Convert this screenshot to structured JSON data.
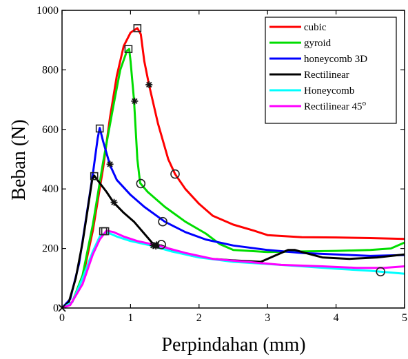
{
  "chart_data": {
    "type": "line",
    "title": "",
    "xlabel": "Perpindahan (mm)",
    "ylabel": "Beban (N)",
    "xlim": [
      0,
      5
    ],
    "ylim": [
      0,
      1000
    ],
    "xticks": [
      "0",
      "1",
      "2",
      "3",
      "4",
      "5"
    ],
    "yticks": [
      "0",
      "200",
      "400",
      "600",
      "800",
      "1000"
    ],
    "grid": false,
    "legend_position": "top-right",
    "series": [
      {
        "name": "cubic",
        "color": "#ff0000",
        "points": [
          [
            0,
            0
          ],
          [
            0.15,
            20
          ],
          [
            0.3,
            100
          ],
          [
            0.45,
            260
          ],
          [
            0.6,
            470
          ],
          [
            0.7,
            640
          ],
          [
            0.8,
            780
          ],
          [
            0.9,
            880
          ],
          [
            1.0,
            925
          ],
          [
            1.1,
            940
          ],
          [
            1.15,
            920
          ],
          [
            1.2,
            830
          ],
          [
            1.27,
            750
          ],
          [
            1.4,
            620
          ],
          [
            1.55,
            500
          ],
          [
            1.65,
            450
          ],
          [
            1.8,
            400
          ],
          [
            2.0,
            350
          ],
          [
            2.2,
            310
          ],
          [
            2.5,
            280
          ],
          [
            2.8,
            260
          ],
          [
            3.0,
            245
          ],
          [
            3.5,
            238
          ],
          [
            4.0,
            237
          ],
          [
            4.5,
            235
          ],
          [
            5.0,
            232
          ]
        ],
        "markers": [
          {
            "x": 1.1,
            "y": 940,
            "symbol": "square"
          },
          {
            "x": 1.27,
            "y": 750,
            "symbol": "asterisk"
          },
          {
            "x": 1.65,
            "y": 450,
            "symbol": "circle"
          }
        ]
      },
      {
        "name": "gyroid",
        "color": "#00dd00",
        "points": [
          [
            0,
            0
          ],
          [
            0.15,
            20
          ],
          [
            0.3,
            110
          ],
          [
            0.45,
            280
          ],
          [
            0.6,
            490
          ],
          [
            0.75,
            680
          ],
          [
            0.85,
            800
          ],
          [
            0.95,
            865
          ],
          [
            0.98,
            870
          ],
          [
            1.0,
            830
          ],
          [
            1.05,
            700
          ],
          [
            1.1,
            500
          ],
          [
            1.14,
            420
          ],
          [
            1.25,
            390
          ],
          [
            1.5,
            340
          ],
          [
            1.8,
            290
          ],
          [
            2.1,
            250
          ],
          [
            2.3,
            215
          ],
          [
            2.5,
            195
          ],
          [
            3.0,
            188
          ],
          [
            3.5,
            190
          ],
          [
            4.0,
            192
          ],
          [
            4.5,
            195
          ],
          [
            4.8,
            200
          ],
          [
            5.0,
            220
          ]
        ],
        "markers": [
          {
            "x": 0.97,
            "y": 870,
            "symbol": "square"
          },
          {
            "x": 1.06,
            "y": 695,
            "symbol": "asterisk"
          },
          {
            "x": 1.15,
            "y": 418,
            "symbol": "circle"
          }
        ]
      },
      {
        "name": "honeycomb 3D",
        "color": "#0000ff",
        "points": [
          [
            0,
            0
          ],
          [
            0.12,
            30
          ],
          [
            0.25,
            150
          ],
          [
            0.35,
            300
          ],
          [
            0.45,
            450
          ],
          [
            0.52,
            570
          ],
          [
            0.55,
            605
          ],
          [
            0.6,
            560
          ],
          [
            0.7,
            480
          ],
          [
            0.8,
            430
          ],
          [
            1.0,
            380
          ],
          [
            1.2,
            340
          ],
          [
            1.5,
            290
          ],
          [
            1.8,
            255
          ],
          [
            2.1,
            230
          ],
          [
            2.5,
            210
          ],
          [
            3.0,
            195
          ],
          [
            3.5,
            185
          ],
          [
            4.0,
            180
          ],
          [
            4.5,
            175
          ],
          [
            5.0,
            178
          ]
        ],
        "markers": [
          {
            "x": 0.55,
            "y": 603,
            "symbol": "square"
          },
          {
            "x": 0.7,
            "y": 483,
            "symbol": "asterisk"
          },
          {
            "x": 1.47,
            "y": 290,
            "symbol": "circle"
          }
        ]
      },
      {
        "name": "Rectilinear",
        "color": "#000000",
        "points": [
          [
            0,
            0
          ],
          [
            0.1,
            20
          ],
          [
            0.2,
            100
          ],
          [
            0.3,
            220
          ],
          [
            0.38,
            340
          ],
          [
            0.44,
            430
          ],
          [
            0.47,
            445
          ],
          [
            0.55,
            420
          ],
          [
            0.65,
            390
          ],
          [
            0.75,
            355
          ],
          [
            0.9,
            320
          ],
          [
            1.05,
            290
          ],
          [
            1.2,
            250
          ],
          [
            1.35,
            210
          ],
          [
            1.45,
            210
          ],
          [
            1.6,
            195
          ],
          [
            1.9,
            175
          ],
          [
            2.2,
            165
          ],
          [
            2.5,
            160
          ],
          [
            2.9,
            155
          ],
          [
            3.1,
            175
          ],
          [
            3.3,
            195
          ],
          [
            3.4,
            195
          ],
          [
            3.55,
            185
          ],
          [
            3.8,
            170
          ],
          [
            4.2,
            165
          ],
          [
            4.6,
            170
          ],
          [
            5.0,
            180
          ]
        ],
        "markers": [
          {
            "x": 0.47,
            "y": 443,
            "symbol": "square"
          },
          {
            "x": 0.76,
            "y": 355,
            "symbol": "asterisk"
          },
          {
            "x": 1.33,
            "y": 210,
            "symbol": "asterisk"
          },
          {
            "x": 1.45,
            "y": 213,
            "symbol": "circle"
          }
        ]
      },
      {
        "name": "Honeycomb",
        "color": "#00ffff",
        "points": [
          [
            0,
            0
          ],
          [
            0.15,
            20
          ],
          [
            0.3,
            100
          ],
          [
            0.45,
            190
          ],
          [
            0.55,
            240
          ],
          [
            0.65,
            255
          ],
          [
            0.8,
            240
          ],
          [
            1.0,
            225
          ],
          [
            1.3,
            210
          ],
          [
            1.6,
            190
          ],
          [
            2.0,
            170
          ],
          [
            2.5,
            155
          ],
          [
            3.0,
            148
          ],
          [
            3.5,
            140
          ],
          [
            4.0,
            132
          ],
          [
            4.5,
            125
          ],
          [
            5.0,
            115
          ]
        ],
        "markers": [
          {
            "x": 0.6,
            "y": 258,
            "symbol": "square"
          },
          {
            "x": 1.37,
            "y": 208,
            "symbol": "asterisk"
          },
          {
            "x": 4.65,
            "y": 122,
            "symbol": "circle"
          }
        ]
      },
      {
        "name": "Rectilinear 45",
        "legend_superscript": "o",
        "color": "#ff00ff",
        "points": [
          [
            0,
            0
          ],
          [
            0.12,
            10
          ],
          [
            0.3,
            80
          ],
          [
            0.45,
            180
          ],
          [
            0.55,
            230
          ],
          [
            0.65,
            260
          ],
          [
            0.75,
            255
          ],
          [
            0.9,
            240
          ],
          [
            1.1,
            225
          ],
          [
            1.4,
            210
          ],
          [
            1.8,
            185
          ],
          [
            2.2,
            165
          ],
          [
            2.7,
            155
          ],
          [
            3.2,
            145
          ],
          [
            3.8,
            140
          ],
          [
            4.3,
            135
          ],
          [
            4.7,
            135
          ],
          [
            5.0,
            140
          ]
        ],
        "markers": [
          {
            "x": 0.63,
            "y": 258,
            "symbol": "square"
          },
          {
            "x": 1.38,
            "y": 212,
            "symbol": "asterisk"
          }
        ]
      }
    ]
  }
}
